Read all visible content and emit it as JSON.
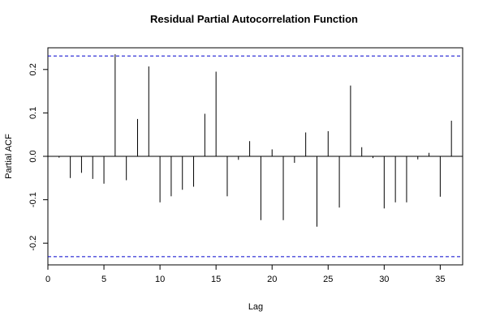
{
  "chart_data": {
    "type": "bar",
    "title": "Residual Partial Autocorrelation Function",
    "xlabel": "Lag",
    "ylabel": "Partial ACF",
    "xlim": [
      0,
      37
    ],
    "ylim": [
      -0.25,
      0.25
    ],
    "x_ticks": [
      0,
      5,
      10,
      15,
      20,
      25,
      30,
      35
    ],
    "y_ticks": [
      -0.2,
      -0.1,
      0.0,
      0.1,
      0.2
    ],
    "y_tick_labels": [
      "-0.2",
      "-0.1",
      "0.0",
      "0.1",
      "0.2"
    ],
    "confidence_bound": 0.231,
    "lags": [
      1,
      2,
      3,
      4,
      5,
      6,
      7,
      8,
      9,
      10,
      11,
      12,
      13,
      14,
      15,
      16,
      17,
      18,
      19,
      20,
      21,
      22,
      23,
      24,
      25,
      26,
      27,
      28,
      29,
      30,
      31,
      32,
      33,
      34,
      35,
      36
    ],
    "values": [
      -0.003,
      -0.05,
      -0.038,
      -0.052,
      -0.063,
      0.235,
      -0.055,
      0.086,
      0.207,
      -0.106,
      -0.092,
      -0.077,
      -0.07,
      0.098,
      0.195,
      -0.092,
      -0.008,
      0.035,
      -0.147,
      0.016,
      -0.147,
      -0.015,
      0.055,
      -0.162,
      0.058,
      -0.118,
      0.163,
      0.021,
      -0.004,
      -0.12,
      -0.106,
      -0.106,
      -0.007,
      0.008,
      -0.093,
      0.082
    ],
    "grid": false,
    "colors": {
      "bars": "#000000",
      "bounds": "#0000cc",
      "frame": "#000000"
    }
  }
}
